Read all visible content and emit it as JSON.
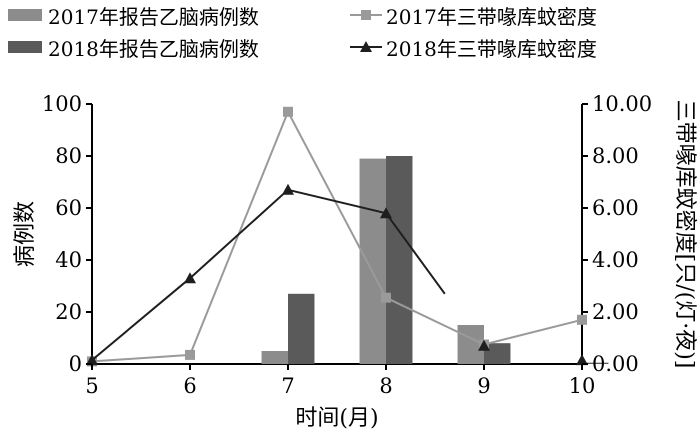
{
  "chart_data": {
    "type": "bar",
    "xlabel": "时间(月)",
    "ylabel": "病例数",
    "y2label": "三带喙库蚊密度[只/(灯·夜)]",
    "categories": [
      "5",
      "6",
      "7",
      "8",
      "9",
      "10"
    ],
    "ylim": [
      0,
      100
    ],
    "y2lim": [
      0,
      10
    ],
    "yticks": [
      "0",
      "20",
      "40",
      "60",
      "80",
      "100"
    ],
    "y2ticks": [
      "0.00",
      "2.00",
      "4.00",
      "6.00",
      "8.00",
      "10.00"
    ],
    "legend_position": "top",
    "series": [
      {
        "name": "2017年报告乙脑病例数",
        "kind": "bar",
        "axis": "left",
        "color": "#8c8c8c",
        "values": [
          0,
          0,
          5,
          79,
          15,
          0
        ]
      },
      {
        "name": "2018年报告乙脑病例数",
        "kind": "bar",
        "axis": "left",
        "color": "#5a5a5a",
        "values": [
          0,
          0,
          27,
          80,
          8,
          0.5
        ]
      },
      {
        "name": "2017年三带喙库蚊密度",
        "kind": "line",
        "axis": "right",
        "color": "#9a9a9a",
        "marker": "square",
        "x": [
          5,
          6,
          7,
          8,
          9,
          10
        ],
        "values": [
          0.1,
          0.35,
          9.7,
          2.55,
          0.75,
          1.7
        ]
      },
      {
        "name": "2018年三带喙库蚊密度",
        "kind": "line",
        "axis": "right",
        "color": "#1e1e1e",
        "marker": "triangle",
        "x": [
          5,
          6,
          7,
          8,
          8.6
        ],
        "values": [
          0.15,
          3.3,
          6.7,
          5.8,
          2.7
        ],
        "marker_x": [
          5,
          6,
          7,
          8,
          9,
          10
        ],
        "marker_values": [
          0.15,
          3.3,
          6.7,
          5.8,
          0.7,
          0.15
        ]
      }
    ]
  }
}
